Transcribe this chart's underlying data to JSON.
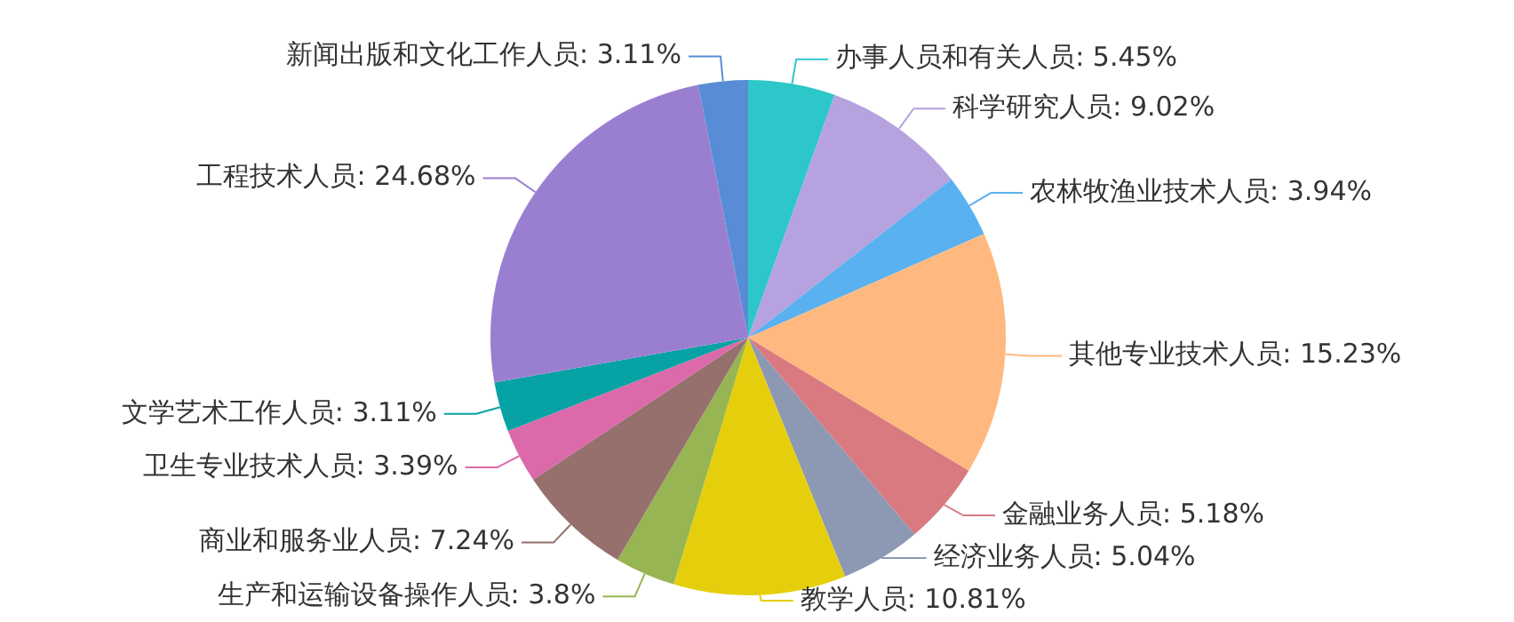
{
  "chart_data": {
    "type": "pie",
    "categories": [
      "办事人员和有关人员",
      "科学研究人员",
      "农林牧渔业技术人员",
      "其他专业技术人员",
      "金融业务人员",
      "经济业务人员",
      "教学人员",
      "生产和运输设备操作人员",
      "商业和服务业人员",
      "卫生专业技术人员",
      "文学艺术工作人员",
      "工程技术人员",
      "新闻出版和文化工作人员"
    ],
    "values": [
      5.45,
      9.02,
      3.94,
      15.23,
      5.18,
      5.04,
      10.81,
      3.8,
      7.24,
      3.39,
      3.11,
      24.68,
      3.11
    ],
    "value_labels": [
      "5.45%",
      "9.02%",
      "3.94%",
      "15.23%",
      "5.18%",
      "5.04%",
      "10.81%",
      "3.8%",
      "7.24%",
      "3.39%",
      "3.11%",
      "24.68%",
      "3.11%"
    ],
    "colors": [
      "#2ec7c9",
      "#b6a2de",
      "#5ab1ef",
      "#ffb980",
      "#d87a80",
      "#8d98b3",
      "#e5cf0d",
      "#97b552",
      "#95706d",
      "#dc69aa",
      "#07a2a4",
      "#9a7fd1",
      "#588dd5"
    ],
    "legend": false
  }
}
